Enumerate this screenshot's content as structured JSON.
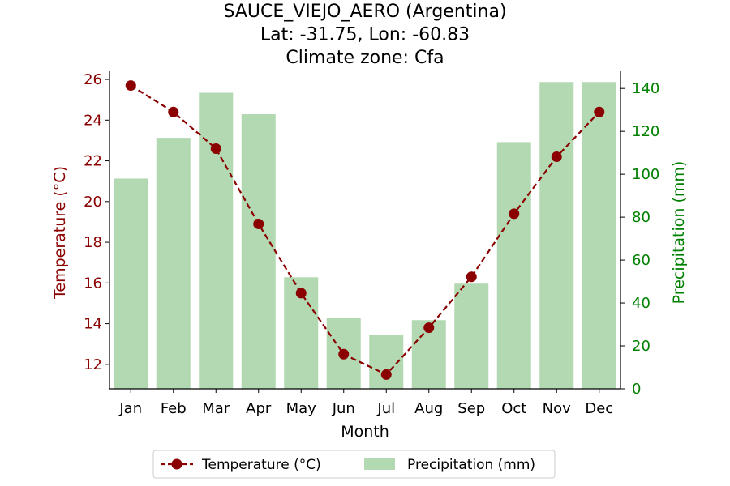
{
  "colors": {
    "temperature": "#8b0000",
    "precipitation_bar": "#b2d9b2",
    "right_axis": "#008000",
    "axis": "#000000"
  },
  "chart_data": {
    "type": "bar",
    "title_lines": [
      "SAUCE_VIEJO_AERO (Argentina)",
      "Lat: -31.75, Lon: -60.83",
      "Climate zone: Cfa"
    ],
    "xlabel": "Month",
    "ylabel_left": "Temperature (°C)",
    "ylabel_right": "Precipitation (mm)",
    "categories": [
      "Jan",
      "Feb",
      "Mar",
      "Apr",
      "May",
      "Jun",
      "Jul",
      "Aug",
      "Sep",
      "Oct",
      "Nov",
      "Dec"
    ],
    "series": [
      {
        "name": "Temperature (°C)",
        "type": "line",
        "axis": "left",
        "values": [
          25.7,
          24.4,
          22.6,
          18.9,
          15.5,
          12.5,
          11.5,
          13.8,
          16.3,
          19.4,
          22.2,
          24.4
        ]
      },
      {
        "name": "Precipitation (mm)",
        "type": "bar",
        "axis": "right",
        "values": [
          98,
          117,
          138,
          128,
          52,
          33,
          25,
          32,
          49,
          115,
          143,
          143
        ]
      }
    ],
    "ylim_left": [
      10.8,
      26.4
    ],
    "ylim_right": [
      0,
      148
    ],
    "yticks_left": [
      "12",
      "14",
      "16",
      "18",
      "20",
      "22",
      "24",
      "26"
    ],
    "yticks_right": [
      "0",
      "20",
      "40",
      "60",
      "80",
      "100",
      "120",
      "140"
    ],
    "legend": {
      "position": "bottom-center",
      "entries": [
        "Temperature (°C)",
        "Precipitation (mm)"
      ]
    },
    "grid": false
  }
}
